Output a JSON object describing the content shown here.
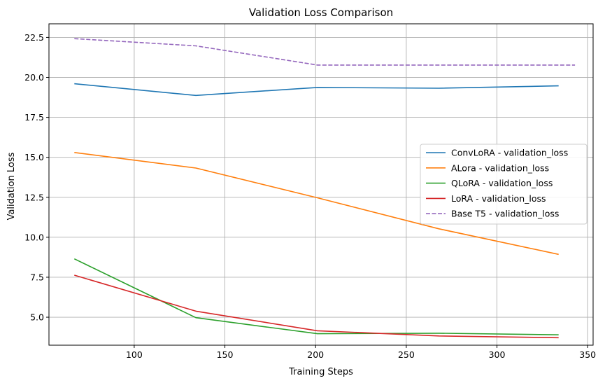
{
  "chart_data": {
    "type": "line",
    "title": "Validation Loss Comparison",
    "xlabel": "Training Steps",
    "ylabel": "Validation Loss",
    "xlim": [
      53,
      353
    ],
    "ylim": [
      3.25,
      23.35
    ],
    "xticks": [
      100,
      150,
      200,
      250,
      300,
      350
    ],
    "xtick_labels": [
      "100",
      "150",
      "200",
      "250",
      "300",
      "350"
    ],
    "yticks": [
      5.0,
      7.5,
      10.0,
      12.5,
      15.0,
      17.5,
      20.0,
      22.5
    ],
    "ytick_labels": [
      "5.0",
      "7.5",
      "10.0",
      "12.5",
      "15.0",
      "17.5",
      "20.0",
      "22.5"
    ],
    "grid": true,
    "legend_position": "center-right",
    "series": [
      {
        "name": "ConvLoRA - validation_loss",
        "color": "#1f77b4",
        "dash": "solid",
        "x": [
          67,
          134,
          201,
          268,
          334
        ],
        "y": [
          19.6,
          18.87,
          19.37,
          19.32,
          19.47
        ]
      },
      {
        "name": "ALora - validation_loss",
        "color": "#ff7f0e",
        "dash": "solid",
        "x": [
          67,
          134,
          201,
          268,
          334
        ],
        "y": [
          15.3,
          14.33,
          12.47,
          10.53,
          8.93
        ]
      },
      {
        "name": "QLoRA - validation_loss",
        "color": "#2ca02c",
        "dash": "solid",
        "x": [
          67,
          134,
          201,
          268,
          334
        ],
        "y": [
          8.65,
          4.97,
          3.97,
          4.0,
          3.9
        ]
      },
      {
        "name": "LoRA - validation_loss",
        "color": "#d62728",
        "dash": "solid",
        "x": [
          67,
          134,
          201,
          268,
          334
        ],
        "y": [
          7.63,
          5.38,
          4.15,
          3.83,
          3.72
        ]
      },
      {
        "name": "Base T5 - validation_loss",
        "color": "#9467bd",
        "dash": "dashed",
        "x": [
          67,
          134,
          201,
          268,
          343
        ],
        "y": [
          22.42,
          21.97,
          20.77,
          20.77,
          20.77
        ]
      }
    ]
  }
}
